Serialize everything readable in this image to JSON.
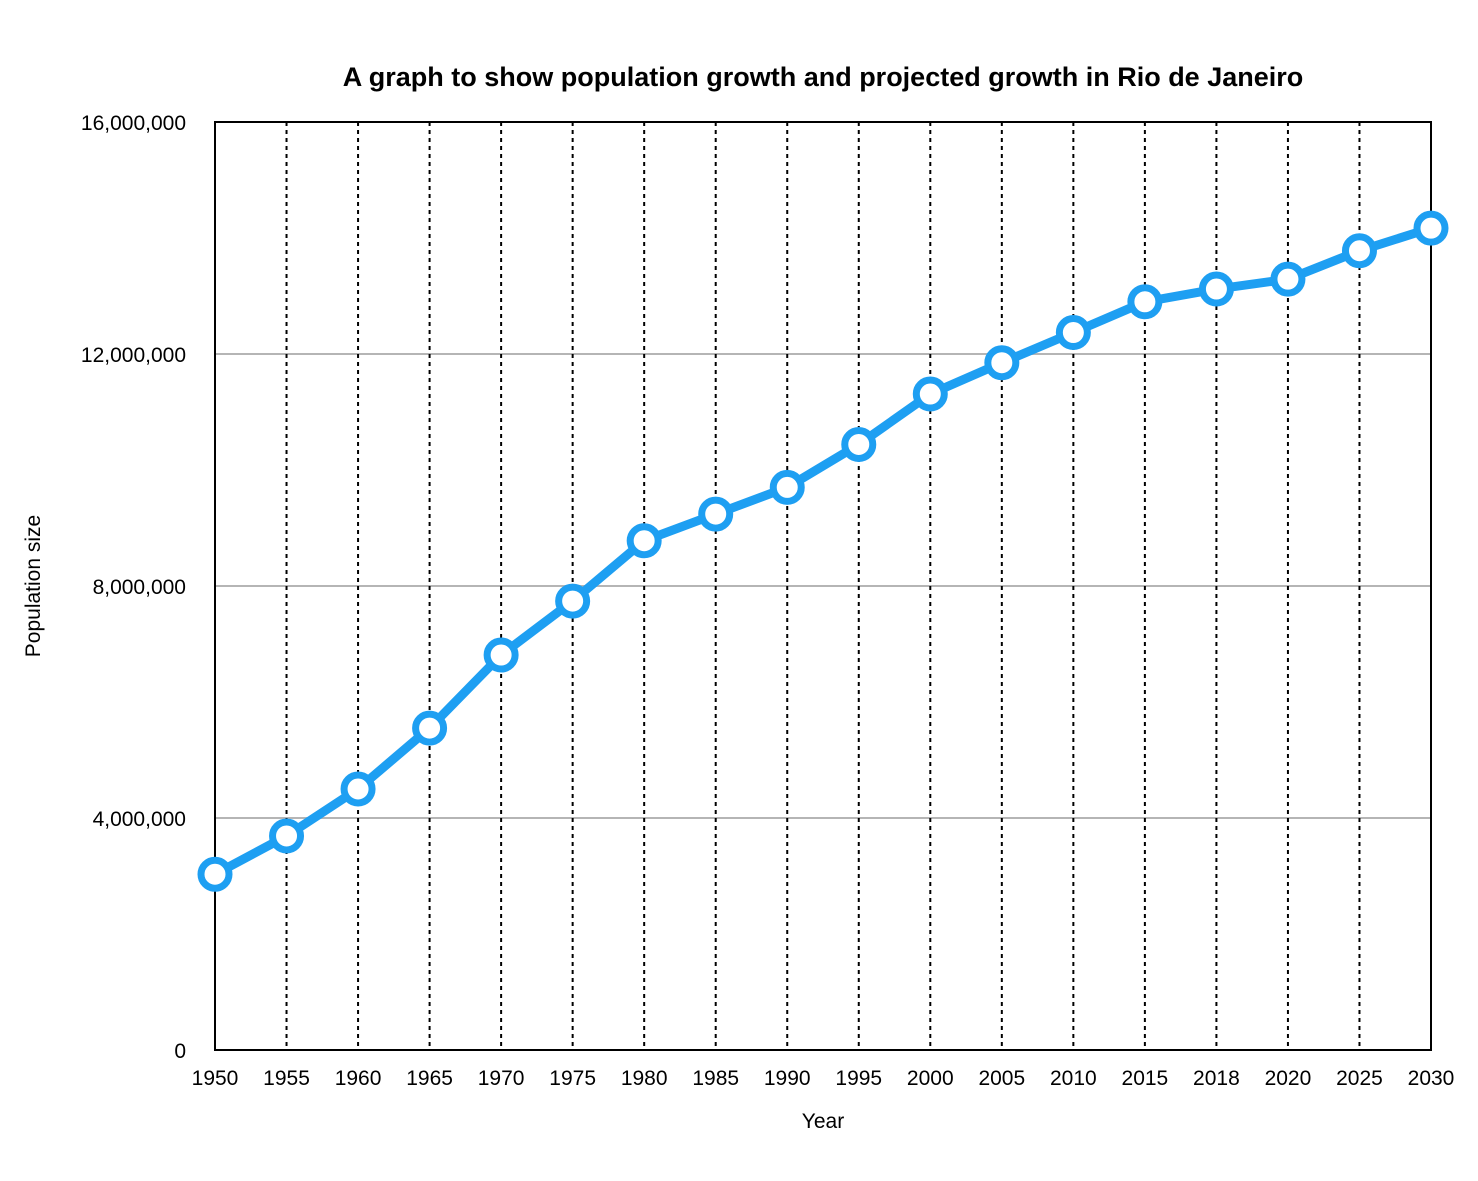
{
  "chart_data": {
    "type": "line",
    "title": "A graph to show population growth and projected growth in Rio de Janeiro",
    "xlabel": "Year",
    "ylabel": "Population size",
    "categories": [
      "1950",
      "1955",
      "1960",
      "1965",
      "1970",
      "1975",
      "1980",
      "1985",
      "1990",
      "1995",
      "2000",
      "2005",
      "2010",
      "2015",
      "2018",
      "2020",
      "2025",
      "2030"
    ],
    "series": [
      {
        "values": [
          3030000,
          3690000,
          4500000,
          5550000,
          6810000,
          7740000,
          8780000,
          9240000,
          9700000,
          10440000,
          11310000,
          11850000,
          12370000,
          12900000,
          13120000,
          13290000,
          13780000,
          14170000
        ]
      }
    ],
    "yticks": [
      "0",
      "4,000,000",
      "8,000,000",
      "12,000,000",
      "16,000,000"
    ],
    "ylim": [
      0,
      16000000
    ],
    "grid": {
      "horizontal": "solid gray",
      "vertical": "dotted black"
    },
    "legend": "none",
    "colors": {
      "line": "#1E9FF2",
      "marker_fill": "#ffffff",
      "grid_h": "#b5b5b5",
      "grid_v": "#000000"
    }
  }
}
